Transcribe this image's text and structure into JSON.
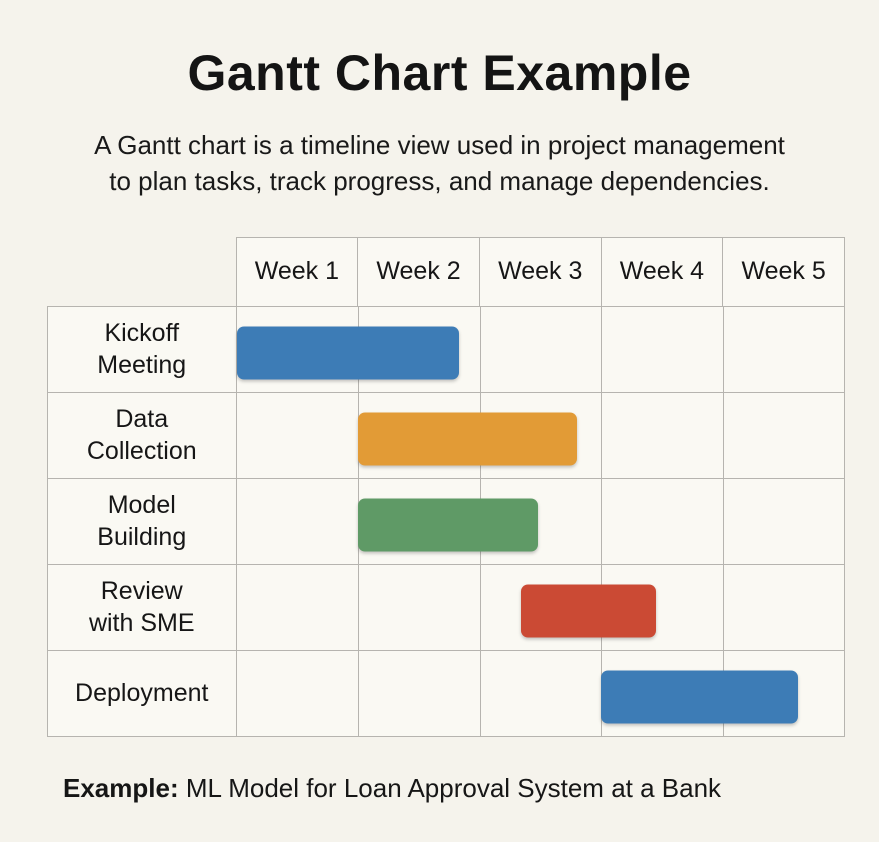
{
  "page": {
    "title": "Gantt Chart Example",
    "subtitle": "A Gantt chart is a timeline view used in project management\nto plan tasks, track progress, and manage dependencies.",
    "caption": {
      "prefix": "Example:",
      "text": " ML Model for Loan Approval System at a Bank"
    }
  },
  "colors": {
    "page_background": "#f5f3ec",
    "cell_background": "#faf9f3",
    "grid_line": "#b6b4af",
    "text": "#161616",
    "bar_blue": "#3d7cb6",
    "bar_orange": "#e29b36",
    "bar_green": "#5f9a66",
    "bar_red": "#cb4a34"
  },
  "chart_data": {
    "type": "gantt",
    "orientation": "horizontal",
    "columns": [
      "Week 1",
      "Week 2",
      "Week 3",
      "Week 4",
      "Week 5"
    ],
    "week_span": 5,
    "axis_range_weeks": [
      0,
      5
    ],
    "grid": true,
    "tasks": [
      {
        "name": "Kickoff Meeting",
        "label_lines": "Kickoff\nMeeting",
        "start_week": 0.0,
        "end_week": 1.83,
        "color": "#3d7cb6"
      },
      {
        "name": "Data Collection",
        "label_lines": "Data\nCollection",
        "start_week": 1.0,
        "end_week": 2.8,
        "color": "#e29b36"
      },
      {
        "name": "Model Building",
        "label_lines": "Model\nBuilding",
        "start_week": 1.0,
        "end_week": 2.48,
        "color": "#5f9a66"
      },
      {
        "name": "Review with SME",
        "label_lines": "Review\nwith SME",
        "start_week": 2.34,
        "end_week": 3.45,
        "color": "#cb4a34"
      },
      {
        "name": "Deployment",
        "label_lines": "Deployment",
        "start_week": 3.0,
        "end_week": 4.62,
        "color": "#3d7cb6"
      }
    ]
  }
}
